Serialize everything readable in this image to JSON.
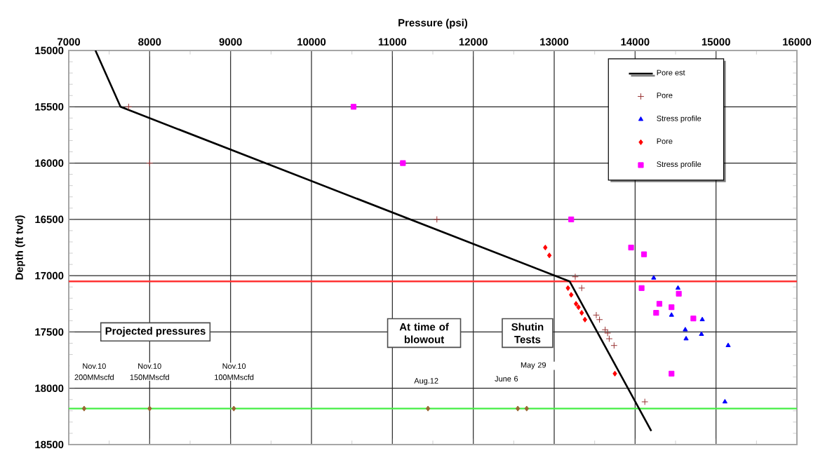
{
  "chart_data": {
    "type": "scatter",
    "xlabel": "Pressure (psi)",
    "ylabel": "Depth (ft tvd)",
    "xlim": [
      7000,
      16000
    ],
    "xticks": [
      7000,
      8000,
      9000,
      10000,
      11000,
      12000,
      13000,
      14000,
      15000,
      16000
    ],
    "ylim": [
      18500,
      15000
    ],
    "yticks": [
      15000,
      15500,
      16000,
      16500,
      17000,
      17500,
      18000,
      18500
    ],
    "grid": true,
    "legend": "top right",
    "series": [
      {
        "name": "Pore est",
        "type": "line",
        "color": "#000000",
        "marker": "none",
        "x": [
          7330,
          7640,
          13190,
          14200
        ],
        "values": [
          15000,
          15500,
          17050,
          18380
        ]
      },
      {
        "name": "Pore",
        "color": "#993333",
        "marker": "cross",
        "x": [
          7740,
          8000,
          11550,
          13260,
          13340,
          13520,
          13560,
          13630,
          13660,
          13680,
          13740,
          14120
        ],
        "values": [
          15500,
          16000,
          16500,
          17010,
          17110,
          17350,
          17390,
          17480,
          17510,
          17560,
          17620,
          18120
        ]
      },
      {
        "name": "Stress profile",
        "color": "#0000ff",
        "marker": "triangle",
        "x": [
          14230,
          14530,
          14450,
          14620,
          14630,
          14830,
          14820,
          15150,
          15110
        ],
        "values": [
          17020,
          17110,
          17350,
          17480,
          17560,
          17390,
          17520,
          17620,
          18120
        ]
      },
      {
        "name": "Pore",
        "color": "#ff0000",
        "marker": "diamond",
        "x": [
          12890,
          12940,
          13170,
          13210,
          13270,
          13300,
          13340,
          13380,
          13750
        ],
        "values": [
          16750,
          16820,
          17110,
          17170,
          17250,
          17280,
          17330,
          17390,
          17870
        ]
      },
      {
        "name": "Stress profile",
        "color": "#ff00ff",
        "marker": "square",
        "x": [
          10520,
          11130,
          13210,
          13950,
          14110,
          14080,
          14540,
          14300,
          14450,
          14260,
          14720,
          14450
        ],
        "values": [
          15500,
          16000,
          16500,
          16750,
          16810,
          17110,
          17160,
          17250,
          17280,
          17330,
          17380,
          17870
        ]
      },
      {
        "color": "#996633",
        "marker": "diamond",
        "x": [
          7190,
          8000,
          9040,
          11440,
          12550,
          12660
        ],
        "values": [
          18180,
          18180,
          18180,
          18180,
          18180,
          18180
        ]
      }
    ],
    "ref_lines": [
      {
        "axis": "y",
        "value": 17050,
        "color": "#ff3333"
      },
      {
        "axis": "y",
        "value": 18180,
        "color": "#44ee44"
      }
    ],
    "annotations": [
      "Projected pressures",
      "At time of blowout",
      "Shutin Tests",
      "Nov.10 200MMscfd",
      "Nov.10 150MMscfd",
      "Nov.10 100MMscfd",
      "Aug.12",
      "June 6",
      "May 29"
    ]
  }
}
